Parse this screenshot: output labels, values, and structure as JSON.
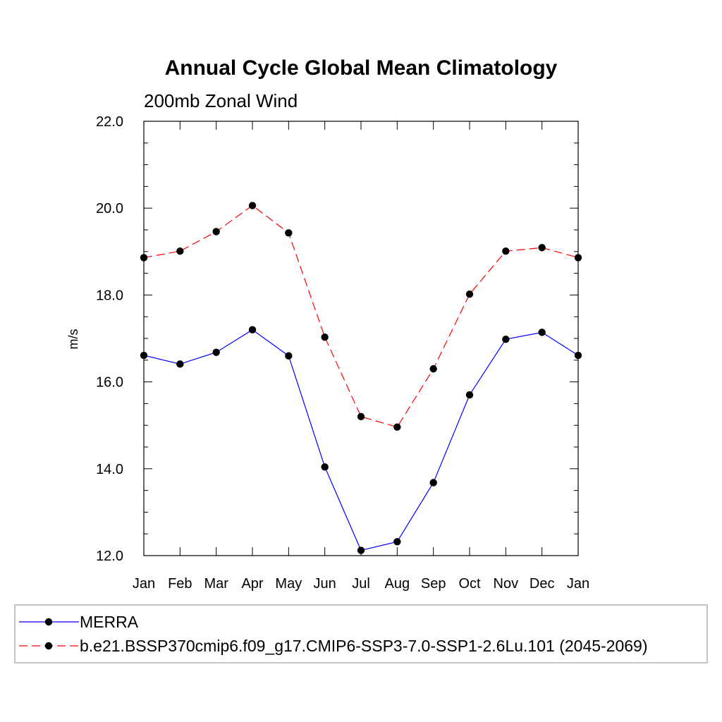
{
  "chart_data": {
    "type": "line",
    "title": "Annual Cycle Global Mean Climatology",
    "subtitle": "200mb Zonal Wind",
    "xlabel": "",
    "ylabel": "m/s",
    "categories": [
      "Jan",
      "Feb",
      "Mar",
      "Apr",
      "May",
      "Jun",
      "Jul",
      "Aug",
      "Sep",
      "Oct",
      "Nov",
      "Dec",
      "Jan"
    ],
    "ylim": [
      12.0,
      22.0
    ],
    "yticks": [
      "12.0",
      "14.0",
      "16.0",
      "18.0",
      "20.0",
      "22.0"
    ],
    "grid": false,
    "legend_position": "bottom",
    "series": [
      {
        "name": "MERRA",
        "color": "#0000ff",
        "dash": "solid",
        "values": [
          16.61,
          16.41,
          16.68,
          17.2,
          16.6,
          14.04,
          12.12,
          12.32,
          13.68,
          15.7,
          16.98,
          17.14,
          16.61
        ]
      },
      {
        "name": "b.e21.BSSP370cmip6.f09_g17.CMIP6-SSP3-7.0-SSP1-2.6Lu.101 (2045-2069)",
        "color": "#ff0000",
        "dash": "dashed",
        "values": [
          18.86,
          19.01,
          19.46,
          20.06,
          19.43,
          17.03,
          15.2,
          14.96,
          16.3,
          18.02,
          19.01,
          19.09,
          18.86
        ]
      }
    ]
  }
}
